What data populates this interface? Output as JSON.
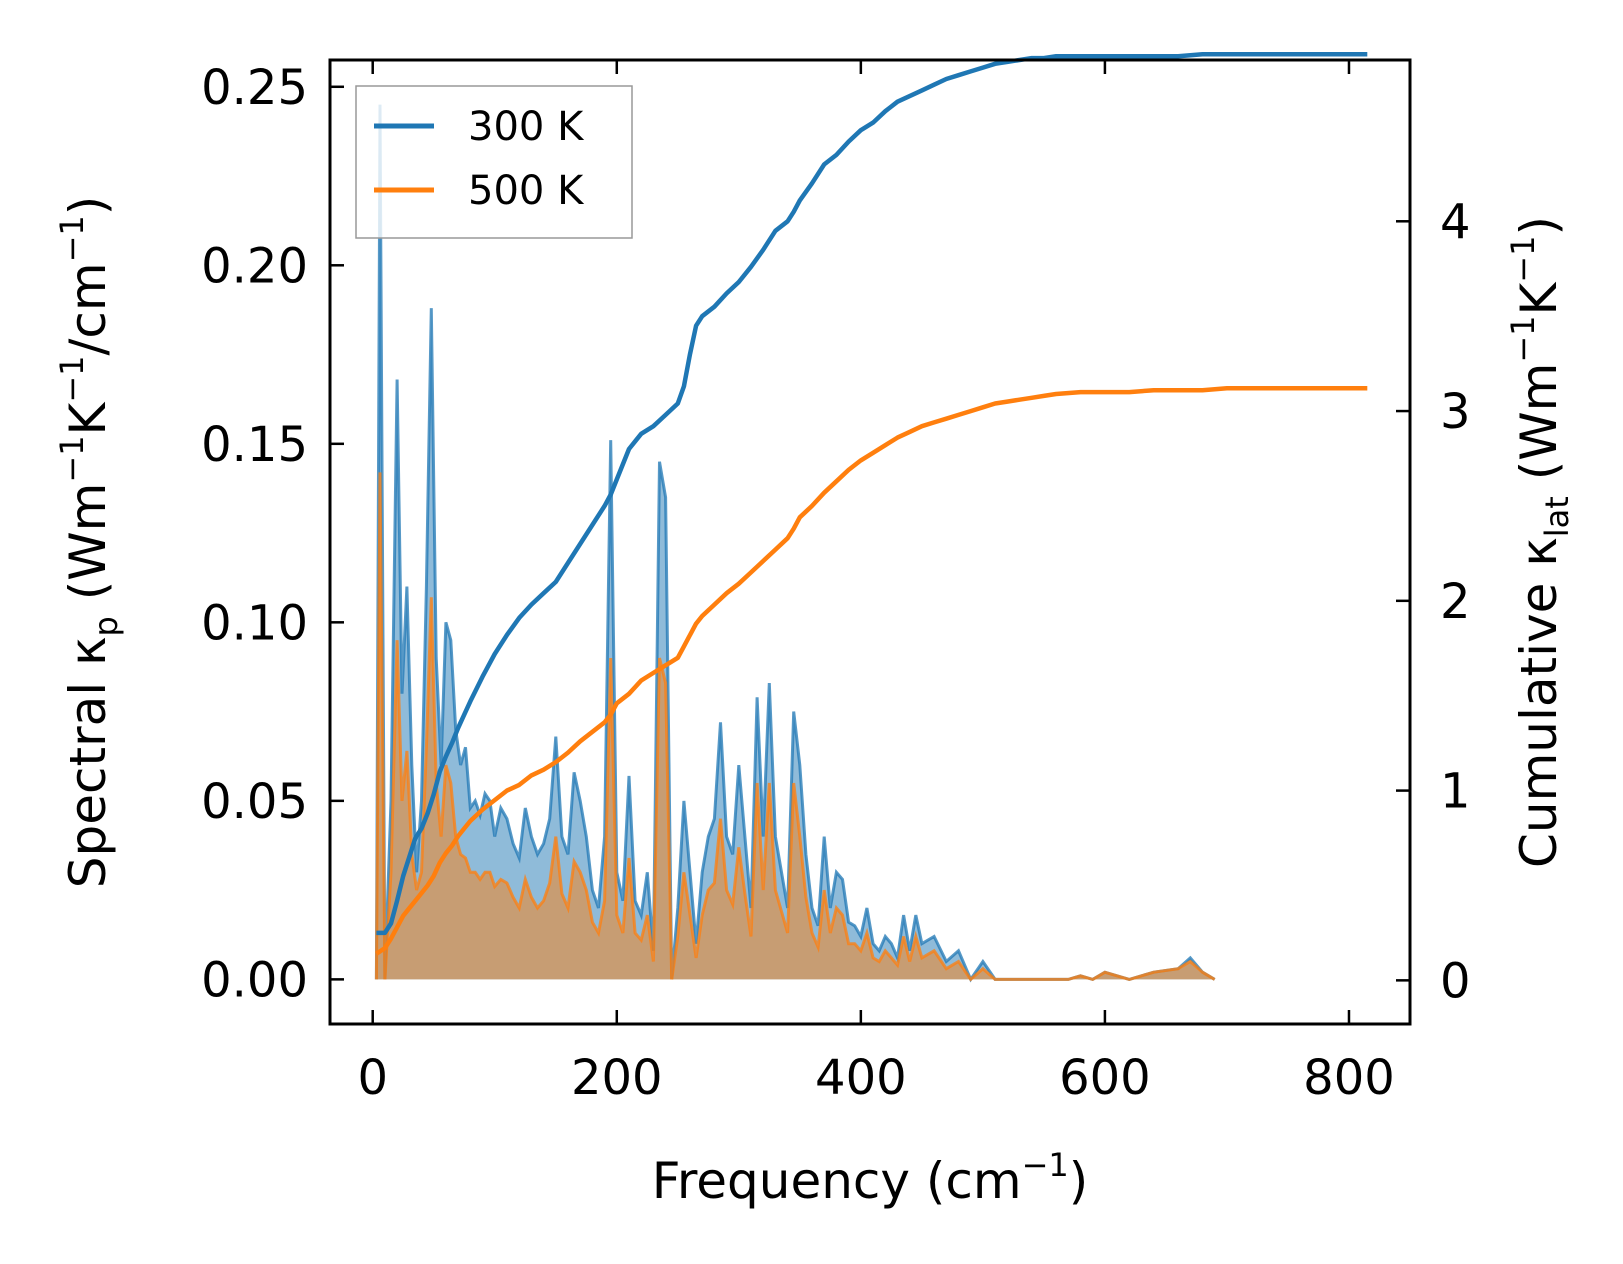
{
  "chart_data": {
    "type": "line",
    "xlabel": {
      "base": "Frequency (cm",
      "sup": "−1",
      "end": ")"
    },
    "ylabel_left": {
      "a": "Spectral κ",
      "sub": "p",
      "b": " (Wm",
      "sup1": "−1",
      "c": "K",
      "sup2": "−1",
      "d": "/cm",
      "sup3": "−1",
      "e": ")"
    },
    "ylabel_right": {
      "a": "Cumulative κ",
      "sub": "lat",
      "b": " (Wm",
      "sup1": "−1",
      "c": "K",
      "sup2": "−1",
      "d": ")"
    },
    "xlim": [
      -35,
      850
    ],
    "ylim_left": [
      -0.0125,
      0.2575
    ],
    "ylim_right": [
      -0.23,
      4.85
    ],
    "xticks": [
      "0",
      "200",
      "400",
      "600",
      "800"
    ],
    "yticks_left": [
      "0.00",
      "0.05",
      "0.10",
      "0.15",
      "0.20",
      "0.25"
    ],
    "yticks_right": [
      "0",
      "1",
      "2",
      "3",
      "4"
    ],
    "legend": {
      "position": "upper-left",
      "entries": [
        "300 K",
        "500 K"
      ]
    },
    "colors": {
      "s300": "#1f77b4",
      "s500": "#ff7f0e",
      "fill300": "#1f77b4",
      "fill500": "#ff7f0e"
    },
    "spectral": {
      "x": [
        3,
        6,
        10,
        15,
        20,
        24,
        28,
        32,
        36,
        40,
        44,
        48,
        52,
        56,
        60,
        64,
        68,
        72,
        76,
        80,
        84,
        88,
        92,
        96,
        100,
        105,
        110,
        115,
        120,
        125,
        130,
        135,
        140,
        145,
        150,
        155,
        160,
        165,
        170,
        175,
        180,
        185,
        190,
        195,
        200,
        205,
        210,
        215,
        220,
        225,
        230,
        235,
        240,
        245,
        250,
        255,
        260,
        265,
        270,
        275,
        280,
        285,
        290,
        295,
        300,
        305,
        310,
        315,
        320,
        325,
        330,
        335,
        340,
        345,
        350,
        355,
        360,
        365,
        370,
        375,
        380,
        385,
        390,
        395,
        400,
        405,
        410,
        415,
        420,
        425,
        430,
        435,
        440,
        445,
        450,
        460,
        470,
        480,
        490,
        500,
        510,
        520,
        530,
        540,
        550,
        560,
        570,
        580,
        590,
        600,
        620,
        640,
        660,
        670,
        680,
        690,
        700,
        710,
        720,
        740,
        760,
        780,
        800,
        815
      ],
      "series": [
        {
          "name": "300 K",
          "values": [
            0.0,
            0.245,
            0.0,
            0.05,
            0.168,
            0.08,
            0.11,
            0.06,
            0.03,
            0.05,
            0.11,
            0.188,
            0.09,
            0.06,
            0.1,
            0.095,
            0.07,
            0.06,
            0.065,
            0.048,
            0.05,
            0.046,
            0.052,
            0.05,
            0.04,
            0.048,
            0.045,
            0.038,
            0.034,
            0.048,
            0.04,
            0.035,
            0.038,
            0.045,
            0.068,
            0.04,
            0.035,
            0.058,
            0.05,
            0.04,
            0.025,
            0.02,
            0.04,
            0.151,
            0.03,
            0.022,
            0.057,
            0.022,
            0.018,
            0.03,
            0.008,
            0.145,
            0.135,
            0.0,
            0.02,
            0.05,
            0.03,
            0.01,
            0.03,
            0.04,
            0.045,
            0.072,
            0.04,
            0.035,
            0.06,
            0.04,
            0.02,
            0.079,
            0.04,
            0.083,
            0.04,
            0.03,
            0.02,
            0.075,
            0.06,
            0.035,
            0.02,
            0.015,
            0.04,
            0.02,
            0.03,
            0.028,
            0.016,
            0.015,
            0.012,
            0.02,
            0.01,
            0.008,
            0.012,
            0.01,
            0.006,
            0.018,
            0.008,
            0.018,
            0.01,
            0.012,
            0.005,
            0.008,
            0.0,
            0.005,
            0.0,
            0.0,
            0.0,
            0.0,
            0.0,
            0.0,
            0.0,
            0.001,
            0.0,
            0.002,
            0.0,
            0.002,
            0.003,
            0.006,
            0.002,
            0.0
          ]
        },
        {
          "name": "500 K",
          "values": [
            0.0,
            0.142,
            0.0,
            0.03,
            0.095,
            0.05,
            0.064,
            0.035,
            0.025,
            0.03,
            0.065,
            0.107,
            0.055,
            0.04,
            0.06,
            0.055,
            0.04,
            0.035,
            0.034,
            0.03,
            0.03,
            0.028,
            0.03,
            0.03,
            0.026,
            0.028,
            0.027,
            0.023,
            0.02,
            0.028,
            0.023,
            0.02,
            0.022,
            0.027,
            0.04,
            0.024,
            0.02,
            0.033,
            0.03,
            0.025,
            0.016,
            0.013,
            0.022,
            0.09,
            0.018,
            0.013,
            0.034,
            0.013,
            0.011,
            0.018,
            0.005,
            0.09,
            0.083,
            0.0,
            0.012,
            0.03,
            0.018,
            0.006,
            0.018,
            0.025,
            0.027,
            0.045,
            0.025,
            0.021,
            0.037,
            0.024,
            0.012,
            0.055,
            0.025,
            0.055,
            0.025,
            0.019,
            0.013,
            0.055,
            0.04,
            0.023,
            0.013,
            0.009,
            0.025,
            0.013,
            0.02,
            0.018,
            0.01,
            0.01,
            0.008,
            0.013,
            0.006,
            0.005,
            0.008,
            0.006,
            0.004,
            0.012,
            0.005,
            0.012,
            0.006,
            0.008,
            0.003,
            0.005,
            0.0,
            0.003,
            0.0,
            0.0,
            0.0,
            0.0,
            0.0,
            0.0,
            0.0,
            0.001,
            0.0,
            0.002,
            0.0,
            0.002,
            0.003,
            0.005,
            0.002,
            0.0
          ]
        }
      ]
    },
    "cumulative": {
      "x": [
        3,
        10,
        15,
        20,
        25,
        30,
        35,
        40,
        45,
        50,
        55,
        60,
        65,
        70,
        75,
        80,
        90,
        100,
        110,
        120,
        130,
        140,
        150,
        160,
        170,
        180,
        190,
        195,
        200,
        210,
        220,
        230,
        240,
        250,
        255,
        260,
        265,
        270,
        280,
        290,
        300,
        310,
        320,
        330,
        340,
        345,
        350,
        360,
        370,
        380,
        390,
        400,
        410,
        420,
        430,
        440,
        450,
        460,
        470,
        480,
        490,
        500,
        510,
        520,
        530,
        540,
        550,
        560,
        580,
        600,
        620,
        640,
        660,
        680,
        700,
        720,
        740,
        760,
        780,
        800,
        815
      ],
      "series": [
        {
          "name": "300 K",
          "values": [
            0.25,
            0.25,
            0.3,
            0.42,
            0.55,
            0.65,
            0.75,
            0.8,
            0.88,
            0.98,
            1.1,
            1.18,
            1.25,
            1.33,
            1.4,
            1.47,
            1.6,
            1.72,
            1.82,
            1.91,
            1.98,
            2.04,
            2.1,
            2.2,
            2.3,
            2.4,
            2.5,
            2.56,
            2.64,
            2.8,
            2.88,
            2.92,
            2.98,
            3.04,
            3.13,
            3.3,
            3.45,
            3.5,
            3.55,
            3.62,
            3.68,
            3.76,
            3.85,
            3.95,
            4.0,
            4.05,
            4.11,
            4.2,
            4.3,
            4.35,
            4.42,
            4.48,
            4.52,
            4.58,
            4.63,
            4.66,
            4.69,
            4.72,
            4.75,
            4.77,
            4.79,
            4.81,
            4.83,
            4.84,
            4.85,
            4.86,
            4.86,
            4.87,
            4.87,
            4.87,
            4.87,
            4.87,
            4.87,
            4.88,
            4.88,
            4.88,
            4.88,
            4.88,
            4.88,
            4.88,
            4.88
          ]
        },
        {
          "name": "500 K",
          "values": [
            0.14,
            0.17,
            0.22,
            0.28,
            0.34,
            0.38,
            0.42,
            0.46,
            0.5,
            0.55,
            0.62,
            0.67,
            0.71,
            0.76,
            0.8,
            0.84,
            0.9,
            0.95,
            1.0,
            1.03,
            1.08,
            1.11,
            1.15,
            1.2,
            1.26,
            1.31,
            1.36,
            1.4,
            1.46,
            1.51,
            1.58,
            1.62,
            1.66,
            1.7,
            1.76,
            1.82,
            1.88,
            1.92,
            1.98,
            2.04,
            2.09,
            2.15,
            2.21,
            2.27,
            2.33,
            2.38,
            2.44,
            2.5,
            2.57,
            2.63,
            2.69,
            2.74,
            2.78,
            2.82,
            2.86,
            2.89,
            2.92,
            2.94,
            2.96,
            2.98,
            3.0,
            3.02,
            3.04,
            3.05,
            3.06,
            3.07,
            3.08,
            3.09,
            3.1,
            3.1,
            3.1,
            3.11,
            3.11,
            3.11,
            3.12,
            3.12,
            3.12,
            3.12,
            3.12,
            3.12,
            3.12
          ]
        }
      ]
    }
  }
}
